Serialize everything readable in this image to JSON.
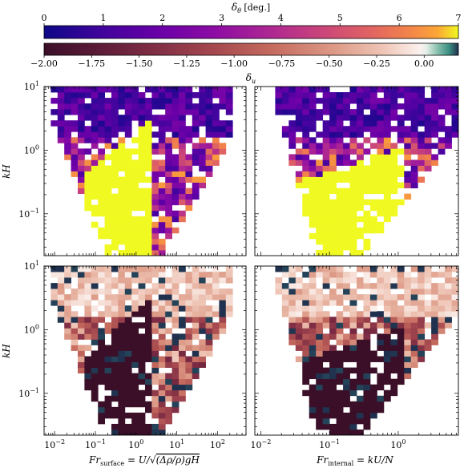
{
  "chart_data": {
    "type": "heatmap",
    "layout": "2x2 grid of 2D histograms with two shared horizontal colorbars on top",
    "colorbars": [
      {
        "label": "δθ [deg.]",
        "label_parts": {
          "base": "δ",
          "sub": "θ",
          "suffix": " [deg.]"
        },
        "colormap": "plasma",
        "range": [
          0,
          7
        ],
        "ticks": [
          "0",
          "1",
          "2",
          "3",
          "4",
          "5",
          "6",
          "7"
        ],
        "tick_values": [
          0,
          1,
          2,
          3,
          4,
          5,
          6,
          7
        ],
        "tick_side": "top"
      },
      {
        "label": "δu",
        "label_parts": {
          "base": "δ",
          "sub": "u"
        },
        "colormap": "diverging dark-red → white → teal",
        "range": [
          -2.0,
          0.18
        ],
        "ticks": [
          "−2.00",
          "−1.75",
          "−1.50",
          "−1.25",
          "−1.00",
          "−0.75",
          "−0.50",
          "−0.25",
          "0.00"
        ],
        "tick_values": [
          -2.0,
          -1.75,
          -1.5,
          -1.25,
          -1.0,
          -0.75,
          -0.5,
          -0.25,
          0.0
        ],
        "tick_side": "bottom"
      }
    ],
    "panels": [
      {
        "id": "top-left",
        "row": 0,
        "col": 0,
        "quantity": "δθ",
        "xkey": "surface"
      },
      {
        "id": "top-right",
        "row": 0,
        "col": 1,
        "quantity": "δθ",
        "xkey": "internal"
      },
      {
        "id": "bottom-left",
        "row": 1,
        "col": 0,
        "quantity": "δu",
        "xkey": "surface"
      },
      {
        "id": "bottom-right",
        "row": 1,
        "col": 1,
        "quantity": "δu",
        "xkey": "internal"
      }
    ],
    "y_axis": {
      "label": "kH",
      "label_parts": {
        "base": "kH"
      },
      "scale": "log",
      "range": [
        0.022,
        10
      ],
      "ticks": [
        {
          "value": 0.1,
          "base": "10",
          "exp": "−1"
        },
        {
          "value": 1,
          "base": "10",
          "exp": "0"
        },
        {
          "value": 10,
          "base": "10",
          "exp": "1"
        }
      ]
    },
    "x_axes": {
      "surface": {
        "label": "Fr_surface = U/√((Δρ/ρ)gH)",
        "label_parts": {
          "base": "Fr",
          "sub": "surface",
          "eq": " = U/",
          "root": "(Δρ/ρ)gH"
        },
        "scale": "log",
        "range": [
          0.0055,
          500
        ],
        "ticks": [
          {
            "value": 0.01,
            "base": "10",
            "exp": "−2"
          },
          {
            "value": 0.1,
            "base": "10",
            "exp": "−1"
          },
          {
            "value": 1,
            "base": "10",
            "exp": "0"
          },
          {
            "value": 10,
            "base": "10",
            "exp": "1"
          },
          {
            "value": 100,
            "base": "10",
            "exp": "2"
          }
        ]
      },
      "internal": {
        "label": "Fr_internal = kU/N",
        "label_parts": {
          "base": "Fr",
          "sub": "internal",
          "eq": " = kU/N"
        },
        "scale": "log",
        "range": [
          0.0082,
          7.5
        ],
        "ticks": [
          {
            "value": 0.01,
            "base": "10",
            "exp": "−2"
          },
          {
            "value": 0.1,
            "base": "10",
            "exp": "−1"
          },
          {
            "value": 1,
            "base": "10",
            "exp": "0"
          }
        ]
      }
    },
    "binning": {
      "nx": 30,
      "ny": 30
    },
    "grid": false,
    "legend": "none"
  }
}
